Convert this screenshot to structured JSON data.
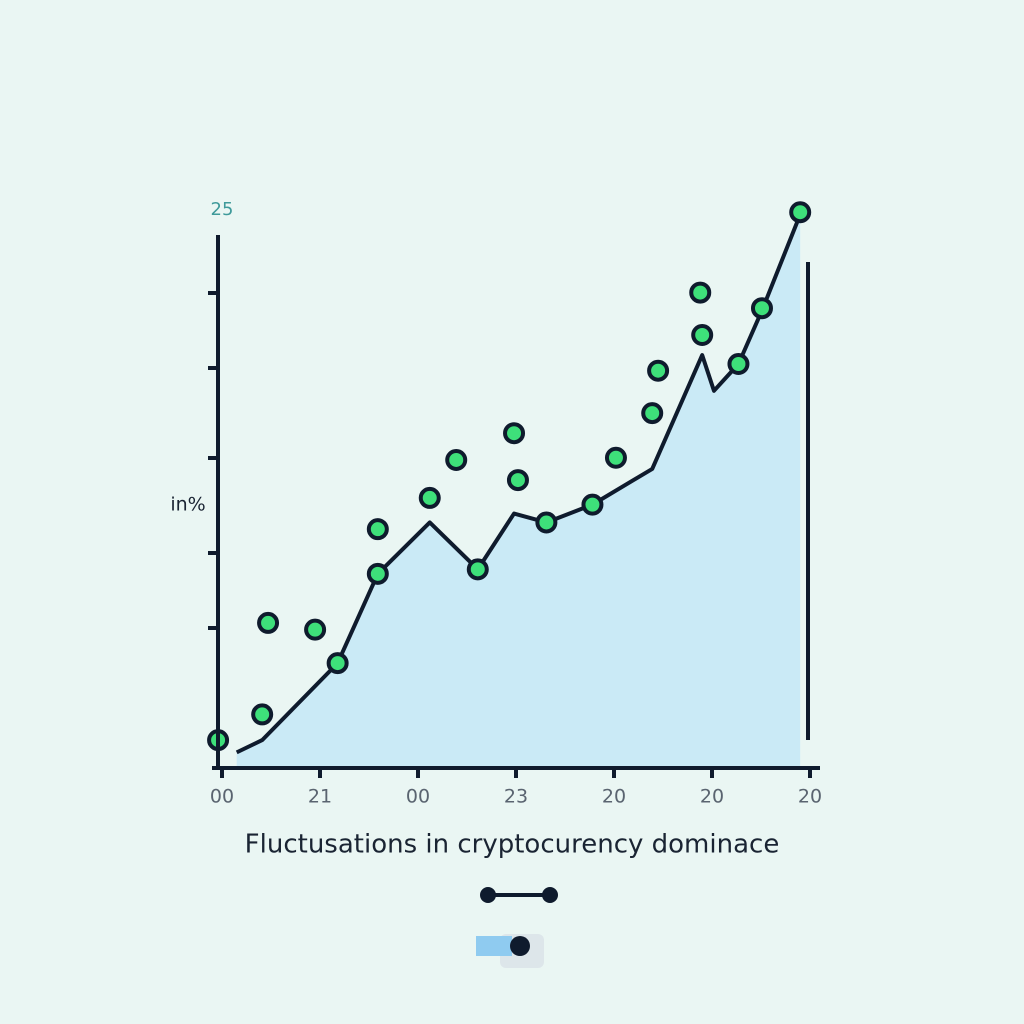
{
  "chart_data": {
    "type": "line",
    "title": "Fluctusations in cryptocurency dominace",
    "ylabel": "in%",
    "xlim": [
      0,
      6
    ],
    "xticks": [
      {
        "value": 0,
        "label": "00"
      },
      {
        "value": 1,
        "label": "21"
      },
      {
        "value": 2,
        "label": "00"
      },
      {
        "value": 3,
        "label": "23"
      },
      {
        "value": 4,
        "label": "20"
      },
      {
        "value": 5,
        "label": "20"
      },
      {
        "value": 6,
        "label": "20"
      }
    ],
    "ylim": [
      0,
      25
    ],
    "yticks": [
      25
    ],
    "area": true,
    "area_color": "#c4e7f6",
    "series": [
      {
        "type": "line",
        "color": "#0f1b2d",
        "x": [
          0.15,
          0.41,
          1.18,
          1.59,
          2.12,
          2.61,
          2.98,
          3.31,
          3.78,
          4.39,
          4.9,
          5.02,
          5.27,
          5.51,
          5.9
        ],
        "values": [
          0.7,
          1.25,
          4.7,
          8.7,
          11.0,
          8.9,
          11.4,
          11.0,
          11.8,
          13.4,
          18.5,
          16.9,
          18.1,
          20.5,
          24.8
        ]
      },
      {
        "type": "scatter",
        "color": "#3ee07a",
        "x": [
          -0.04,
          0.41,
          0.47,
          0.95,
          1.18,
          1.59,
          1.59,
          2.12,
          2.39,
          2.61,
          2.98,
          3.02,
          3.31,
          3.78,
          4.02,
          4.39,
          4.45,
          4.88,
          4.9,
          5.27,
          5.51,
          5.9
        ],
        "values": [
          1.25,
          2.4,
          6.5,
          6.2,
          4.7,
          10.7,
          8.7,
          12.1,
          13.8,
          8.9,
          15.0,
          12.9,
          11.0,
          11.8,
          13.9,
          15.9,
          17.8,
          21.3,
          19.4,
          18.1,
          20.6,
          24.9
        ]
      }
    ]
  }
}
